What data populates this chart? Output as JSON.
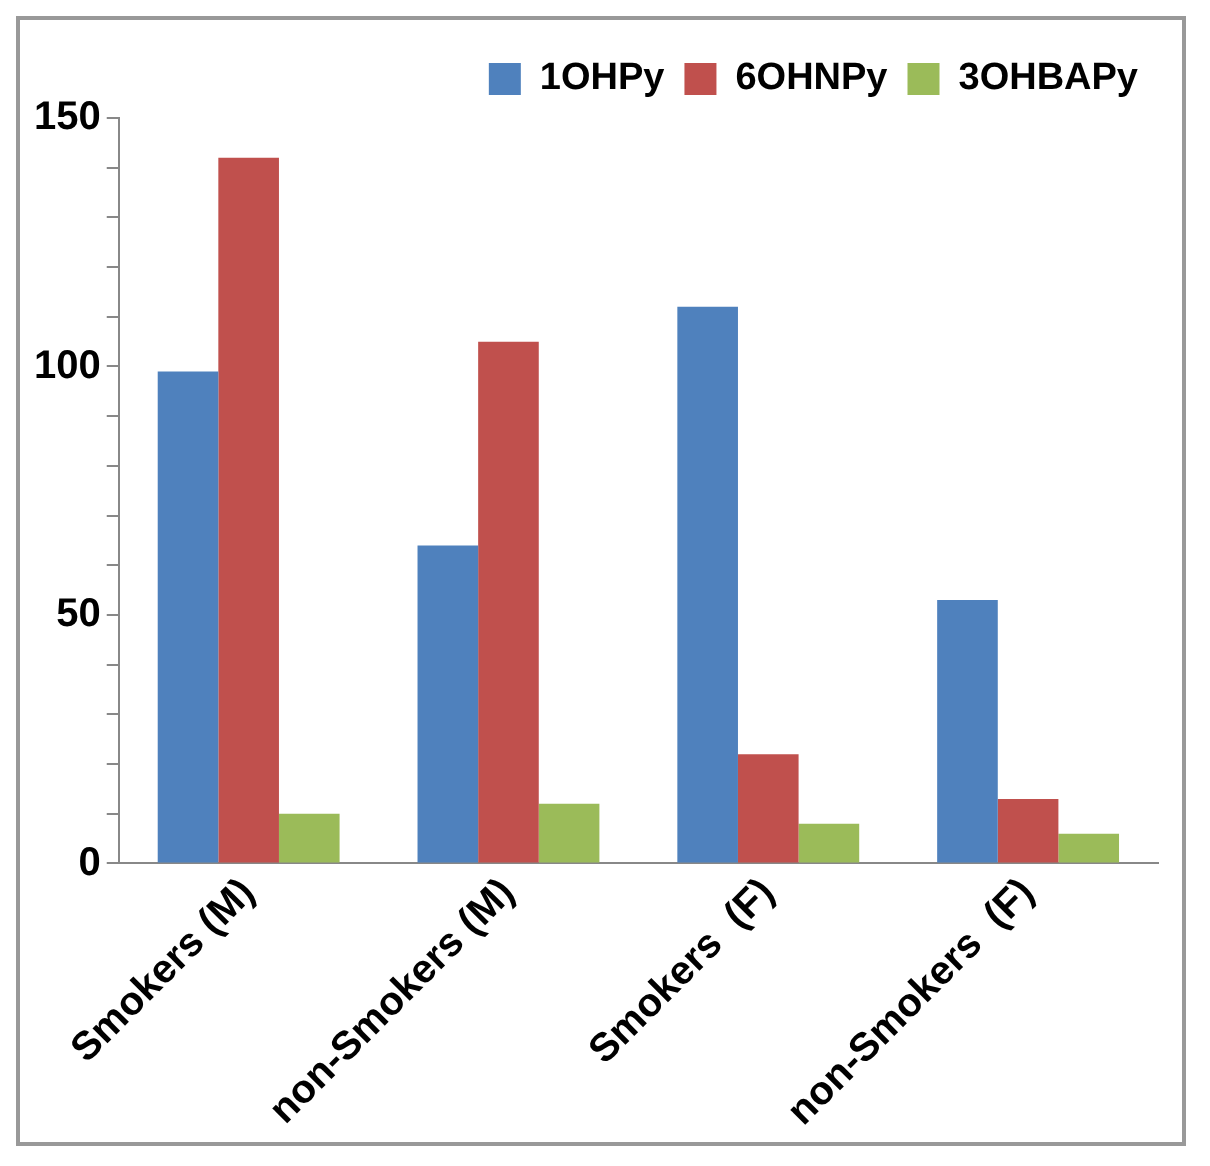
{
  "chart_data": {
    "type": "bar",
    "categories": [
      "Smokers (M)",
      "non-Smokers (M)",
      "Smokers  (F)",
      "non-Smokers  (F)"
    ],
    "series": [
      {
        "name": "1OHPy",
        "color": "#4f81bd",
        "values": [
          99,
          64,
          112,
          53
        ]
      },
      {
        "name": "6OHNPy",
        "color": "#c0504d",
        "values": [
          142,
          105,
          22,
          13
        ]
      },
      {
        "name": "3OHBAPy",
        "color": "#9bbb59",
        "values": [
          10,
          12,
          8,
          6
        ]
      }
    ],
    "ylim": [
      0,
      150
    ],
    "yticks": [
      0,
      {
        "value": 10,
        "label": null
      },
      {
        "value": 20,
        "label": null
      },
      {
        "value": 30,
        "label": null
      },
      {
        "value": 40,
        "label": null
      },
      50,
      {
        "value": 60,
        "label": null
      },
      {
        "value": 70,
        "label": null
      },
      {
        "value": 80,
        "label": null
      },
      {
        "value": 90,
        "label": null
      },
      100,
      {
        "value": 110,
        "label": null
      },
      {
        "value": 120,
        "label": null
      },
      {
        "value": 130,
        "label": null
      },
      {
        "value": 140,
        "label": null
      },
      150
    ],
    "grid": false,
    "legend": "top right"
  }
}
